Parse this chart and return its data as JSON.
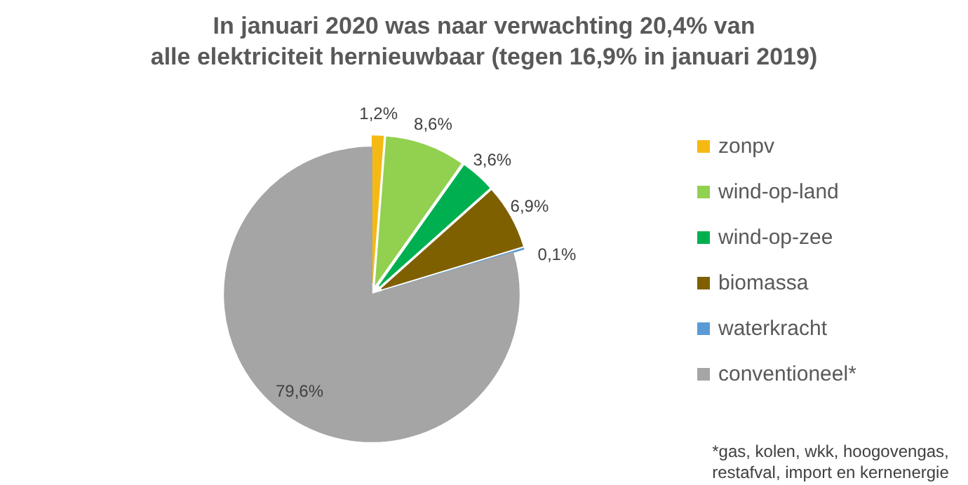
{
  "chart_data": {
    "type": "pie",
    "title": "In januari 2020 was naar verwachting 20,4% van alle elektriciteit hernieuwbaar (tegen 16,9% in januari 2019)",
    "categories": [
      "zonpv",
      "wind-op-land",
      "wind-op-zee",
      "biomassa",
      "waterkracht",
      "conventioneel*"
    ],
    "values": [
      1.2,
      8.6,
      3.6,
      6.9,
      0.1,
      79.6
    ],
    "colors": [
      "#f5b914",
      "#92d050",
      "#00b050",
      "#7f6000",
      "#5b9bd5",
      "#a5a5a5"
    ],
    "value_labels": [
      "1,2%",
      "8,6%",
      "3,6%",
      "6,9%",
      "0,1%",
      "79,6%"
    ],
    "legend": "right",
    "annotations": [
      "*gas, kolen, wkk, hoogovengas, restafval, import en kernenergie"
    ]
  }
}
